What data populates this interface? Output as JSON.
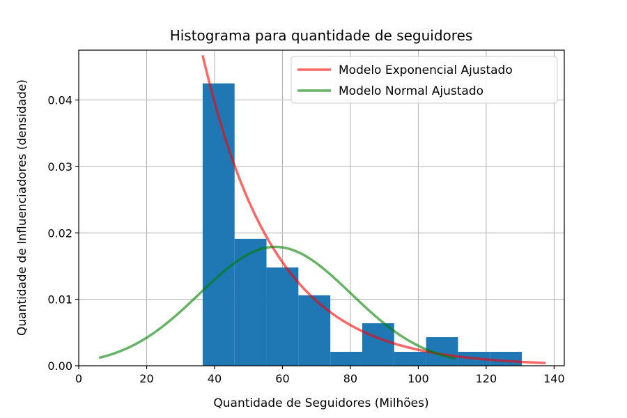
{
  "chart_data": {
    "type": "histogram",
    "title": "Histograma para quantidade de seguidores",
    "xlabel": "Quantidade de Seguidores (Milhões)",
    "ylabel": "Quantidade de Influenciadores (densidade)",
    "xlim": [
      0,
      143
    ],
    "ylim": [
      0,
      0.0475
    ],
    "xticks": [
      0,
      20,
      40,
      60,
      80,
      100,
      120,
      140
    ],
    "yticks": [
      0.0,
      0.01,
      0.02,
      0.03,
      0.04
    ],
    "ytick_labels": [
      "0.00",
      "0.01",
      "0.02",
      "0.03",
      "0.04"
    ],
    "grid": true,
    "legend_position": "top-right",
    "bins": [
      {
        "x0": 36.5,
        "x1": 45.9,
        "density": 0.0425
      },
      {
        "x0": 45.9,
        "x1": 55.3,
        "density": 0.0191
      },
      {
        "x0": 55.3,
        "x1": 64.7,
        "density": 0.0148
      },
      {
        "x0": 64.7,
        "x1": 74.1,
        "density": 0.0106
      },
      {
        "x0": 74.1,
        "x1": 83.5,
        "density": 0.0021
      },
      {
        "x0": 83.5,
        "x1": 92.9,
        "density": 0.0064
      },
      {
        "x0": 92.9,
        "x1": 102.3,
        "density": 0.0021
      },
      {
        "x0": 102.3,
        "x1": 111.7,
        "density": 0.0043
      },
      {
        "x0": 111.7,
        "x1": 121.1,
        "density": 0.0021
      },
      {
        "x0": 121.1,
        "x1": 130.5,
        "density": 0.0021
      }
    ],
    "series": [
      {
        "name": "Modelo Exponencial Ajustado",
        "color": "#ff0000",
        "type": "exponential",
        "loc": 36.5,
        "scale": 21.4,
        "x_range": [
          36.5,
          137.5
        ]
      },
      {
        "name": "Modelo Normal Ajustado",
        "color": "#008000",
        "type": "normal",
        "mean": 57.9,
        "std": 22.3,
        "x_range": [
          6,
          111
        ]
      }
    ],
    "bar_color": "#1f77b4"
  }
}
